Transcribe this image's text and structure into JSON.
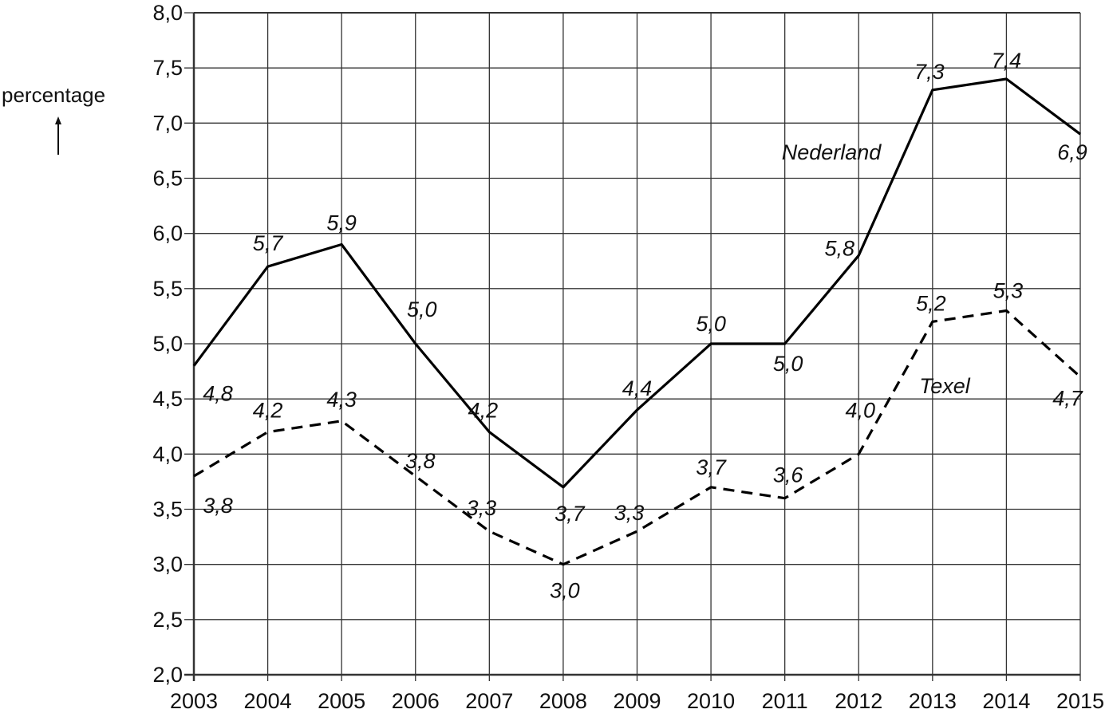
{
  "chart_data": {
    "type": "line",
    "title": "",
    "xlabel": "",
    "ylabel": "percentage",
    "ylim": [
      2.0,
      8.0
    ],
    "yticks": [
      "2,0",
      "2,5",
      "3,0",
      "3,5",
      "4,0",
      "4,5",
      "5,0",
      "5,5",
      "6,0",
      "6,5",
      "7,0",
      "7,5",
      "8,0"
    ],
    "categories": [
      "2003",
      "2004",
      "2005",
      "2006",
      "2007",
      "2008",
      "2009",
      "2010",
      "2011",
      "2012",
      "2013",
      "2014",
      "2015"
    ],
    "grid": true,
    "series": [
      {
        "name": "Nederland",
        "style": "solid",
        "values": [
          4.8,
          5.7,
          5.9,
          5.0,
          4.2,
          3.7,
          4.4,
          5.0,
          5.0,
          5.8,
          7.3,
          7.4,
          6.9
        ],
        "labels": [
          "4,8",
          "5,7",
          "5,9",
          "5,0",
          "4,2",
          "3,7",
          "4,4",
          "5,0",
          "5,0",
          "5,8",
          "7,3",
          "7,4",
          "6,9"
        ]
      },
      {
        "name": "Texel",
        "style": "dashed",
        "values": [
          3.8,
          4.2,
          4.3,
          3.8,
          3.3,
          3.0,
          3.3,
          3.7,
          3.6,
          4.0,
          5.2,
          5.3,
          4.7
        ],
        "labels": [
          "3,8",
          "4,2",
          "4,3",
          "3,8",
          "3,3",
          "3,0",
          "3,3",
          "3,7",
          "3,6",
          "4,0",
          "5,2",
          "5,3",
          "4,7"
        ]
      }
    ]
  },
  "colors": {
    "line": "#000000",
    "grid": "#333333",
    "text": "#111111"
  }
}
